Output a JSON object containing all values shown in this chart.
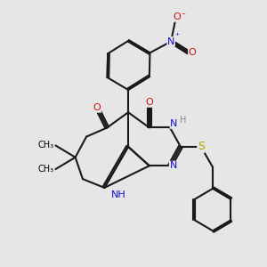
{
  "background_color": "#e6e6e6",
  "bond_color": "#1a1a1a",
  "bond_width": 1.5,
  "N_color": "#1010cc",
  "O_color": "#cc1010",
  "S_color": "#aaaa00",
  "H_color": "#888888",
  "font_size_atom": 8.5,
  "fig_width": 3.0,
  "fig_height": 3.0,
  "dpi": 100,
  "xlim": [
    0,
    10
  ],
  "ylim": [
    0,
    10
  ]
}
